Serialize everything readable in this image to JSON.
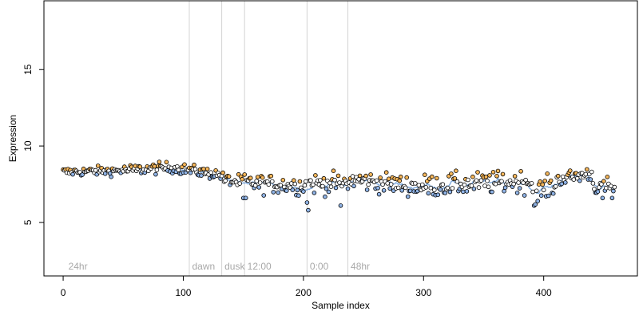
{
  "chart_data": {
    "type": "scatter",
    "xlabel": "Sample index",
    "ylabel": "Expression",
    "xlim": [
      -16,
      478
    ],
    "ylim": [
      1.5,
      19.5
    ],
    "xticks": [
      0,
      100,
      200,
      300,
      400
    ],
    "yticks": [
      5,
      10,
      15
    ],
    "colors": {
      "point_fill_default": "#ffffff",
      "point_fill_highlight": "#f5b65a",
      "point_fill_low": "#8fb3e6",
      "point_stroke": "#000000",
      "trend_line": "#6f9fd8",
      "vline": "#d3d3d3",
      "annotation_text": "#a8a8a8"
    },
    "annotations": [
      {
        "label": "24hr",
        "x": 3
      },
      {
        "label": "dawn",
        "x": 106
      },
      {
        "label": "dusk",
        "x": 133
      },
      {
        "label": "12:00",
        "x": 152
      },
      {
        "label": "0:00",
        "x": 204
      },
      {
        "label": "48hr",
        "x": 238
      }
    ],
    "vlines": [
      105,
      132,
      151,
      203,
      237
    ],
    "segments": [
      {
        "x0": 0,
        "x1": 50,
        "y0": 8.3,
        "y1": 8.4,
        "spread": 0.25
      },
      {
        "x0": 50,
        "x1": 90,
        "y0": 8.4,
        "y1": 8.6,
        "spread": 0.3
      },
      {
        "x0": 90,
        "x1": 132,
        "y0": 8.6,
        "y1": 8.1,
        "spread": 0.3
      },
      {
        "x0": 132,
        "x1": 150,
        "y0": 7.8,
        "y1": 7.6,
        "spread": 0.4
      },
      {
        "x0": 150,
        "x1": 200,
        "y0": 7.6,
        "y1": 7.4,
        "spread": 0.5
      },
      {
        "x0": 200,
        "x1": 240,
        "y0": 7.5,
        "y1": 7.6,
        "spread": 0.55
      },
      {
        "x0": 240,
        "x1": 300,
        "y0": 7.8,
        "y1": 7.3,
        "spread": 0.55
      },
      {
        "x0": 300,
        "x1": 390,
        "y0": 7.4,
        "y1": 7.7,
        "spread": 0.6
      },
      {
        "x0": 390,
        "x1": 410,
        "y0": 7.0,
        "y1": 7.4,
        "spread": 0.6
      },
      {
        "x0": 410,
        "x1": 440,
        "y0": 7.8,
        "y1": 8.2,
        "spread": 0.4
      },
      {
        "x0": 440,
        "x1": 460,
        "y0": 7.4,
        "y1": 7.3,
        "spread": 0.5
      }
    ],
    "outliers": [
      {
        "x": 150,
        "y": 6.6
      },
      {
        "x": 152,
        "y": 6.6
      },
      {
        "x": 204,
        "y": 5.8
      },
      {
        "x": 203,
        "y": 6.3
      },
      {
        "x": 231,
        "y": 6.1
      },
      {
        "x": 392,
        "y": 6.1
      },
      {
        "x": 395,
        "y": 6.4
      },
      {
        "x": 449,
        "y": 6.6
      },
      {
        "x": 457,
        "y": 6.6
      }
    ],
    "n_points": 460
  }
}
